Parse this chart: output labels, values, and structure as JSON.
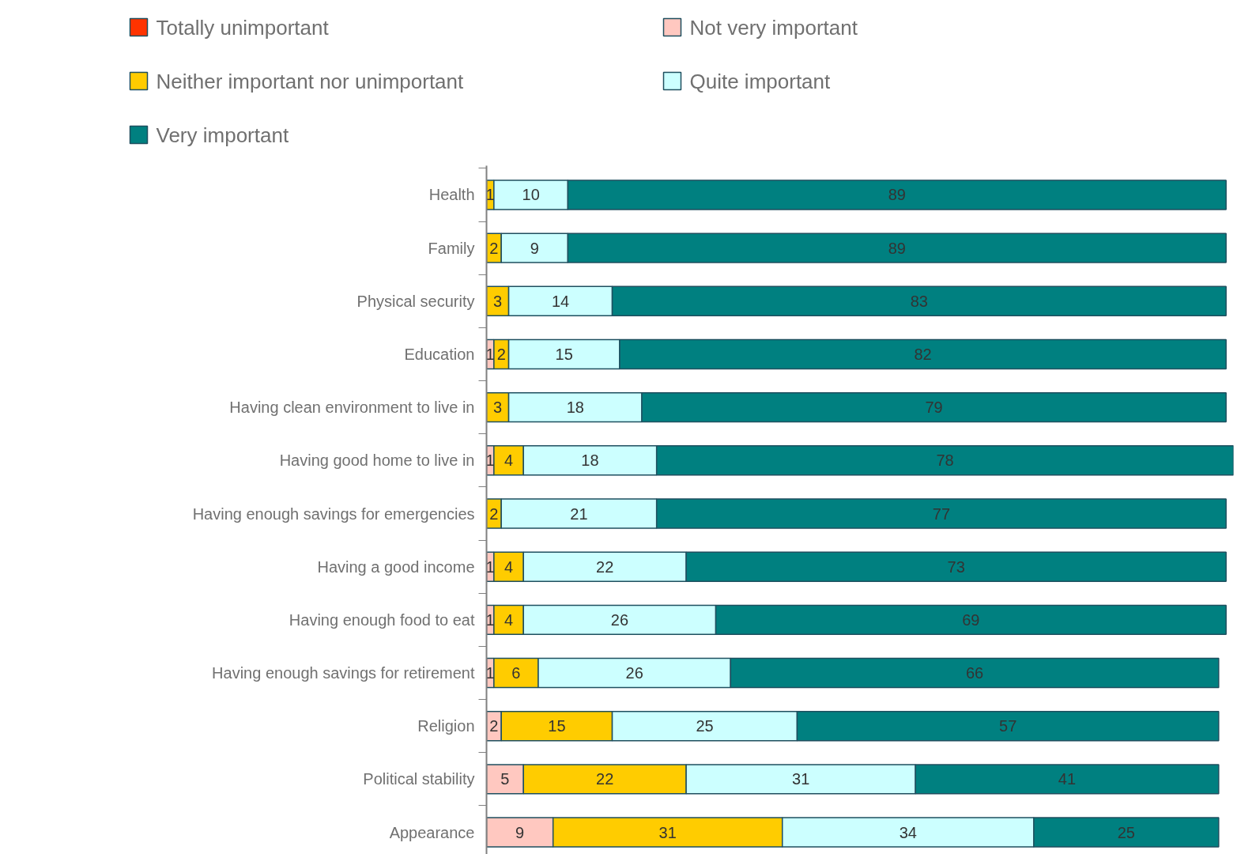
{
  "chart_data": {
    "type": "bar",
    "orientation": "horizontal",
    "stacked": true,
    "data_labels": true,
    "legend": "top",
    "grid": false,
    "tick_labels": "y",
    "categories": [
      "Health",
      "Family",
      "Physical security",
      "Education",
      "Having clean environment to live in",
      "Having good home to live in",
      "Having enough savings for emergencies",
      "Having a good income",
      "Having enough food to eat",
      "Having enough savings for retirement",
      "Religion",
      "Political stability",
      "Appearance"
    ],
    "series": [
      {
        "name": "Totally unimportant",
        "color": "#ff3300",
        "values": [
          null,
          null,
          null,
          null,
          null,
          null,
          null,
          null,
          null,
          null,
          null,
          null,
          null
        ]
      },
      {
        "name": "Not very important",
        "color": "#ffc8c0",
        "values": [
          null,
          null,
          null,
          1,
          null,
          1,
          null,
          1,
          1,
          1,
          2,
          5,
          9
        ]
      },
      {
        "name": "Neither important nor unimportant",
        "color": "#ffcc00",
        "values": [
          1,
          2,
          3,
          2,
          3,
          4,
          2,
          4,
          4,
          6,
          15,
          22,
          31
        ]
      },
      {
        "name": "Quite important",
        "color": "#ccffff",
        "values": [
          10,
          9,
          14,
          15,
          18,
          18,
          21,
          22,
          26,
          26,
          25,
          31,
          34
        ]
      },
      {
        "name": "Very important",
        "color": "#008080",
        "values": [
          89,
          89,
          83,
          82,
          79,
          78,
          77,
          73,
          69,
          66,
          57,
          41,
          25
        ]
      }
    ]
  }
}
